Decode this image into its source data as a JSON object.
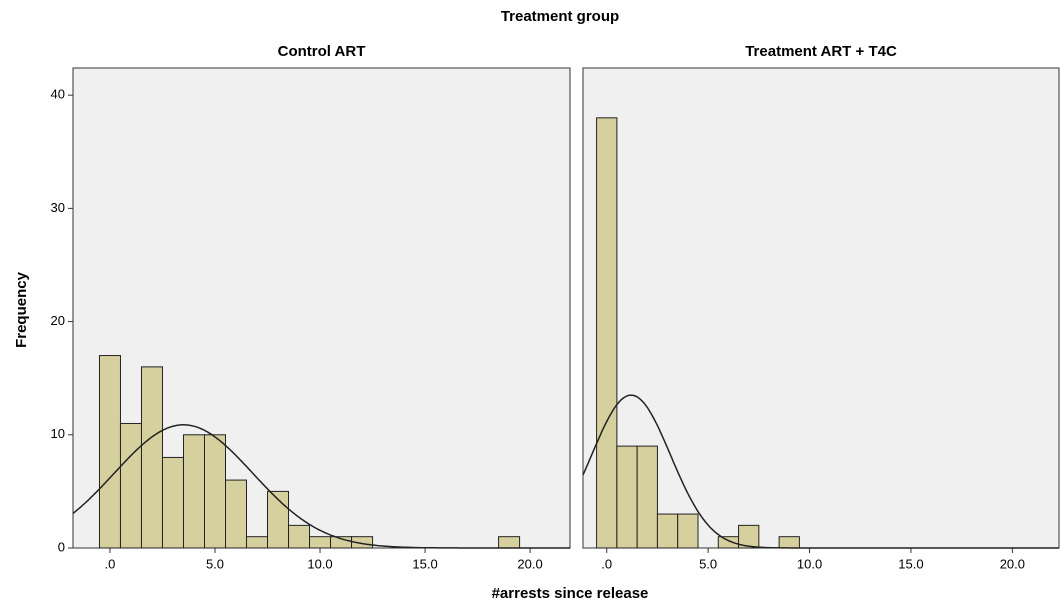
{
  "figure": {
    "title": "Treatment group",
    "xlabel": "#arrests since release",
    "ylabel": "Frequency"
  },
  "chart_data": [
    {
      "type": "histogram",
      "title": "Control ART",
      "color": "#d6cf9e",
      "bins": [
        -0.5,
        0.5,
        1.5,
        2.5,
        3.5,
        4.5,
        5.5,
        6.5,
        7.5,
        8.5,
        9.5,
        10.5,
        11.5,
        12.5,
        13.5,
        14.5,
        15.5,
        16.5,
        17.5,
        18.5,
        19.5
      ],
      "values": [
        17,
        11,
        16,
        8,
        10,
        10,
        6,
        1,
        5,
        2,
        1,
        1,
        1,
        0,
        0,
        0,
        0,
        0,
        0,
        1
      ],
      "curve": {
        "mean": 3.5,
        "sd": 3.3
      },
      "xlim": [
        -1.76,
        21.9
      ],
      "ylim": [
        0,
        42.4
      ],
      "xticks": [
        {
          "value": 0,
          "label": ".0"
        },
        {
          "value": 5,
          "label": "5.0"
        },
        {
          "value": 10,
          "label": "10.0"
        },
        {
          "value": 15,
          "label": "15.0"
        },
        {
          "value": 20,
          "label": "20.0"
        }
      ],
      "yticks": [
        0,
        10,
        20,
        30,
        40
      ]
    },
    {
      "type": "histogram",
      "title": "Treatment ART + T4C",
      "color": "#d6cf9e",
      "bins": [
        -0.5,
        0.5,
        1.5,
        2.5,
        3.5,
        4.5,
        5.5,
        6.5,
        7.5,
        8.5,
        9.5
      ],
      "values": [
        38,
        9,
        9,
        3,
        3,
        0,
        1,
        2,
        0,
        1
      ],
      "curve": {
        "mean": 1.2,
        "sd": 1.95
      },
      "xlim": [
        -1.17,
        22.3
      ],
      "ylim": [
        0,
        42.4
      ],
      "xticks": [
        {
          "value": 0,
          "label": ".0"
        },
        {
          "value": 5,
          "label": "5.0"
        },
        {
          "value": 10,
          "label": "10.0"
        },
        {
          "value": 15,
          "label": "15.0"
        },
        {
          "value": 20,
          "label": "20.0"
        }
      ]
    }
  ]
}
